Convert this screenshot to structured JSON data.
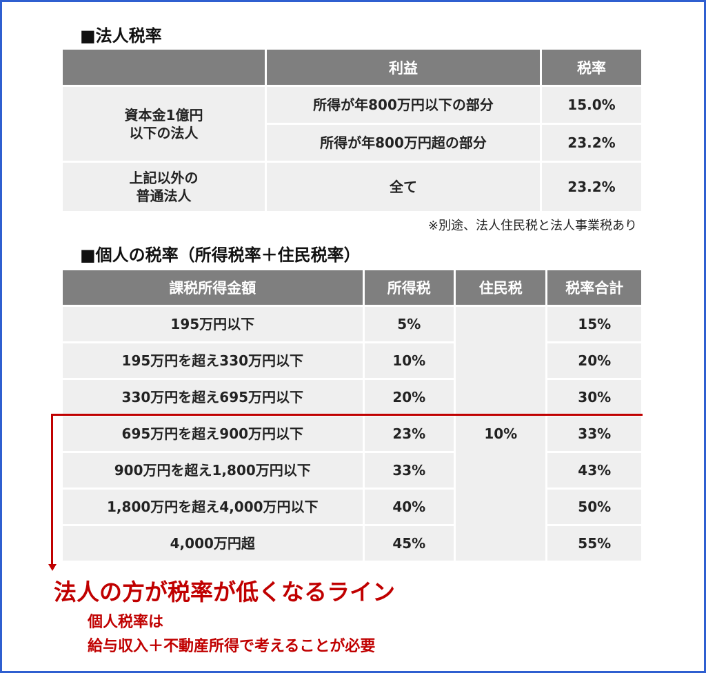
{
  "corporate": {
    "title": "■法人税率",
    "header": {
      "blank": "",
      "profit": "利益",
      "rate": "税率"
    },
    "rows": [
      {
        "category": "資本金1億円\n以下の法人",
        "sub": [
          {
            "profit": "所得が年800万円以下の部分",
            "rate": "15.0%"
          },
          {
            "profit": "所得が年800万円超の部分",
            "rate": "23.2%"
          }
        ]
      },
      {
        "category": "上記以外の\n普通法人",
        "sub": [
          {
            "profit": "全て",
            "rate": "23.2%"
          }
        ]
      }
    ],
    "note": "※別途、法人住民税と法人事業税あり"
  },
  "individual": {
    "title": "■個人の税率（所得税率＋住民税率）",
    "header": {
      "income": "課税所得金額",
      "income_tax": "所得税",
      "resident_tax": "住民税",
      "total": "税率合計"
    },
    "resident_tax_value": "10%",
    "rows": [
      {
        "income": "195万円以下",
        "income_tax": "5%",
        "total": "15%"
      },
      {
        "income": "195万円を超え330万円以下",
        "income_tax": "10%",
        "total": "20%"
      },
      {
        "income": "330万円を超え695万円以下",
        "income_tax": "20%",
        "total": "30%"
      },
      {
        "income": "695万円を超え900万円以下",
        "income_tax": "23%",
        "total": "33%"
      },
      {
        "income": "900万円を超え1,800万円以下",
        "income_tax": "33%",
        "total": "43%"
      },
      {
        "income": "1,800万円を超え4,000万円以下",
        "income_tax": "40%",
        "total": "50%"
      },
      {
        "income": "4,000万円超",
        "income_tax": "45%",
        "total": "55%"
      }
    ]
  },
  "callout": {
    "headline": "法人の方が税率が低くなるライン",
    "line1": "個人税率は",
    "line2": "給与収入＋不動産所得で考えることが必要"
  },
  "colors": {
    "frame": "#2f5fd0",
    "header_bg": "#7f7f7f",
    "cell_bg": "#efefef",
    "accent_red": "#c00000"
  }
}
